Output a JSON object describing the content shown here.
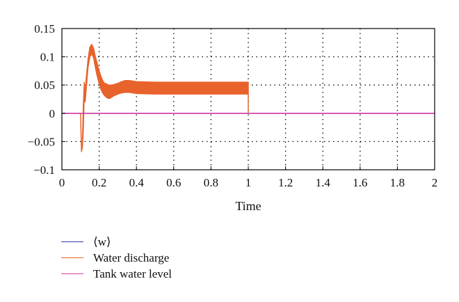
{
  "chart_data": {
    "type": "line",
    "title": "",
    "xlabel": "Time",
    "ylabel": "",
    "xlim": [
      0,
      2
    ],
    "ylim": [
      -0.1,
      0.15
    ],
    "xticks": [
      0,
      0.2,
      0.4,
      0.6,
      0.8,
      1,
      1.2,
      1.4,
      1.6,
      1.8,
      2
    ],
    "xtick_labels": [
      "0",
      "0.2",
      "0.4",
      "0.6",
      "0.8",
      "1",
      "1.2",
      "1.4",
      "1.6",
      "1.8",
      "2"
    ],
    "yticks": [
      -0.1,
      -0.05,
      0,
      0.05,
      0.1,
      0.15
    ],
    "ytick_labels": [
      "−0.1",
      "−0.05",
      "0",
      "0.05",
      "0.1",
      "0.15"
    ],
    "grid": true,
    "legend_position": "below",
    "series": [
      {
        "name": "⟨w⟩",
        "color": "#2b3a9e",
        "x": [
          0,
          2
        ],
        "y": [
          0,
          0
        ]
      },
      {
        "name": "Water discharge",
        "color": "#e8632b",
        "x": [
          0.1,
          0.105,
          0.11,
          0.115,
          0.12,
          0.125,
          0.13,
          0.14,
          0.15,
          0.16,
          0.17,
          0.18,
          0.19,
          0.2,
          0.21,
          0.22,
          0.23,
          0.24,
          0.25,
          0.26,
          0.27,
          0.28,
          0.3,
          0.32,
          0.34,
          0.36,
          0.38,
          0.4,
          0.5,
          0.6,
          0.7,
          0.8,
          0.9,
          1.0,
          1.0
        ],
        "y_upper": [
          0.0,
          -0.06,
          -0.05,
          0.015,
          0.055,
          0.03,
          0.06,
          0.095,
          0.117,
          0.122,
          0.115,
          0.1,
          0.088,
          0.075,
          0.065,
          0.057,
          0.053,
          0.052,
          0.05,
          0.05,
          0.05,
          0.051,
          0.053,
          0.056,
          0.058,
          0.058,
          0.057,
          0.056,
          0.055,
          0.055,
          0.055,
          0.055,
          0.055,
          0.055,
          0.0
        ],
        "y_lower": [
          0.0,
          -0.068,
          -0.06,
          -0.03,
          0.035,
          0.02,
          0.04,
          0.08,
          0.1,
          0.105,
          0.098,
          0.08,
          0.065,
          0.052,
          0.042,
          0.035,
          0.031,
          0.028,
          0.026,
          0.027,
          0.029,
          0.031,
          0.034,
          0.036,
          0.037,
          0.037,
          0.036,
          0.035,
          0.034,
          0.034,
          0.034,
          0.034,
          0.034,
          0.034,
          0.0
        ]
      },
      {
        "name": "Tank water level",
        "color": "#d63fa8",
        "x": [
          0,
          2
        ],
        "y": [
          0,
          0
        ]
      }
    ]
  }
}
